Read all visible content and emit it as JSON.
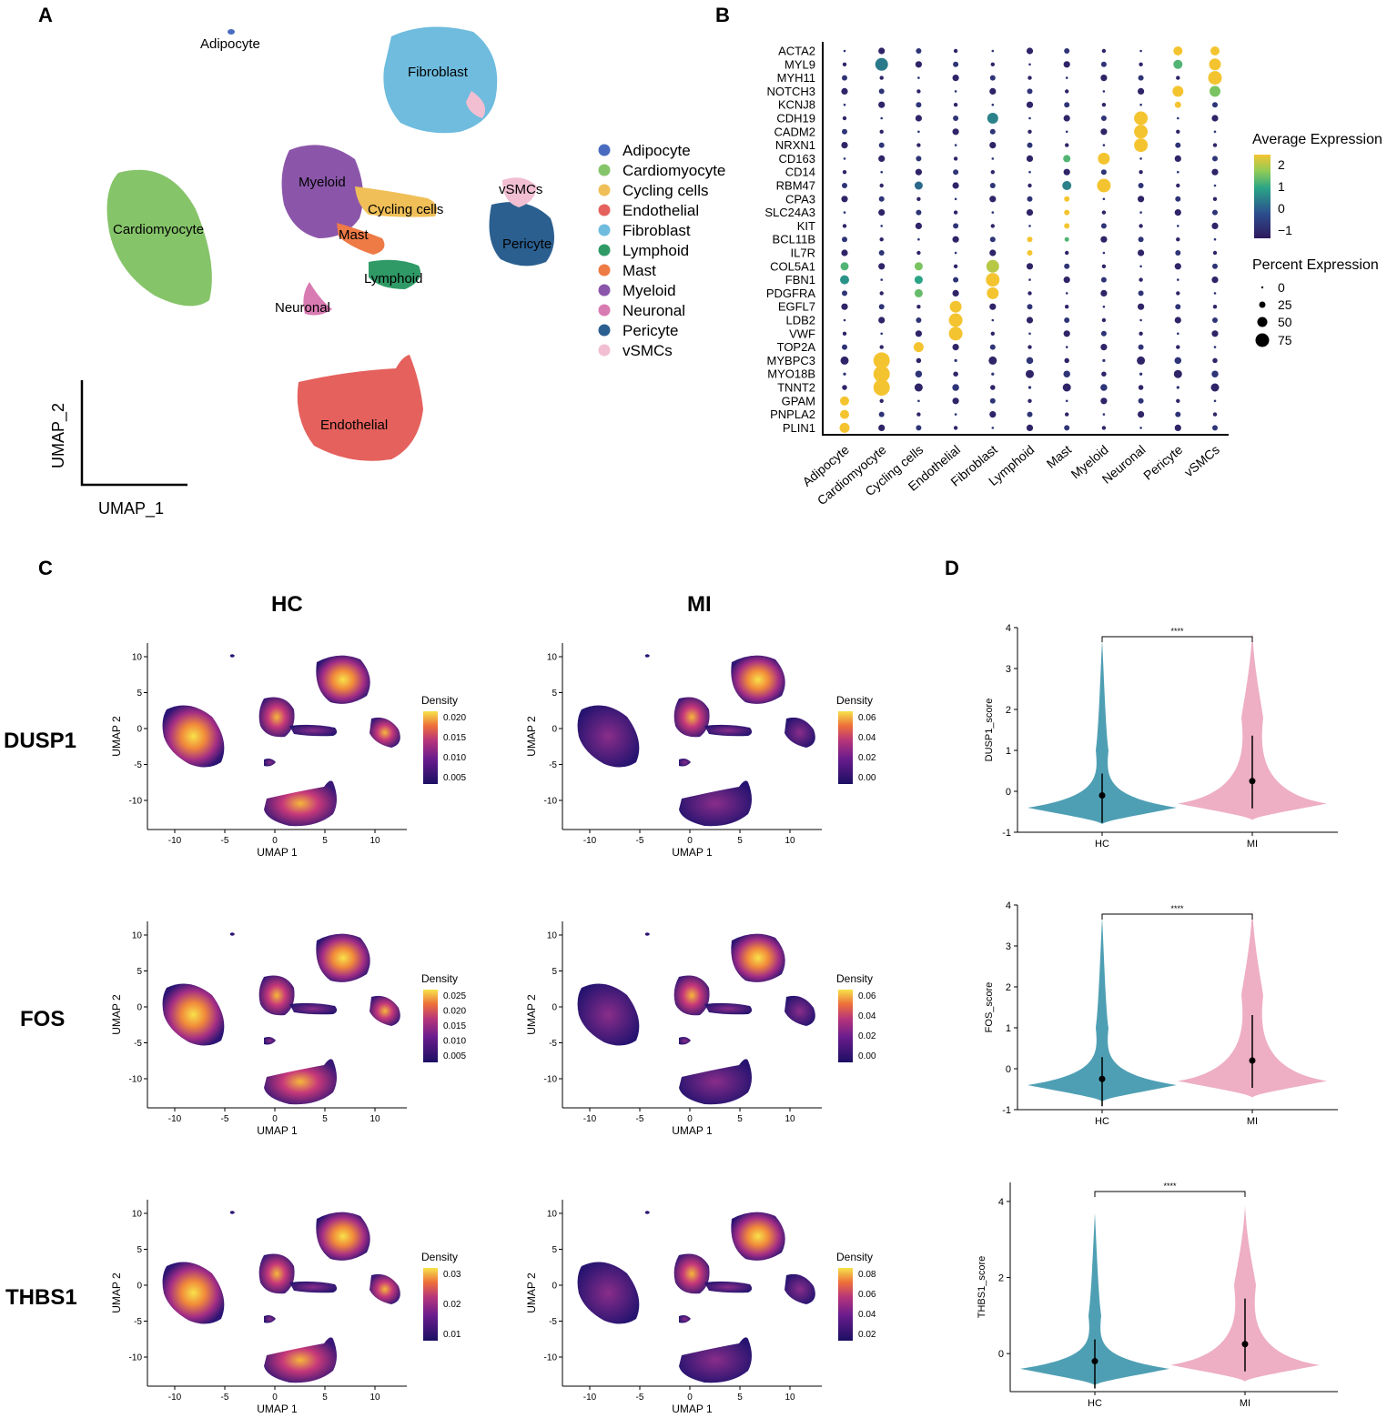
{
  "panels": {
    "A": "A",
    "B": "B",
    "C": "C",
    "D": "D"
  },
  "panel_a": {
    "cluster_labels": [
      "Adipocyte",
      "Fibroblast",
      "Myeloid",
      "Cardiomyocyte",
      "Cycling cells",
      "vSMCs",
      "Mast",
      "Pericyte",
      "Lymphoid",
      "Neuronal",
      "Endothelial"
    ],
    "legend": [
      {
        "name": "Adipocyte",
        "color": "#4a6cc0"
      },
      {
        "name": "Cardiomyocyte",
        "color": "#86c46a"
      },
      {
        "name": "Cycling cells",
        "color": "#f0bf57"
      },
      {
        "name": "Endothelial",
        "color": "#e5615d"
      },
      {
        "name": "Fibroblast",
        "color": "#6fbcde"
      },
      {
        "name": "Lymphoid",
        "color": "#2f9a66"
      },
      {
        "name": "Mast",
        "color": "#ee7a45"
      },
      {
        "name": "Myeloid",
        "color": "#8b56aa"
      },
      {
        "name": "Neuronal",
        "color": "#d97bb3"
      },
      {
        "name": "Pericyte",
        "color": "#2b5f8f"
      },
      {
        "name": "vSMCs",
        "color": "#f2bfd2"
      }
    ],
    "axis_x": "UMAP_1",
    "axis_y": "UMAP_2"
  },
  "panel_b": {
    "genes": [
      "ACTA2",
      "MYL9",
      "MYH11",
      "NOTCH3",
      "KCNJ8",
      "CDH19",
      "CADM2",
      "NRXN1",
      "CD163",
      "CD14",
      "RBM47",
      "CPA3",
      "SLC24A3",
      "KIT",
      "BCL11B",
      "IL7R",
      "COL5A1",
      "FBN1",
      "PDGFRA",
      "EGFL7",
      "LDB2",
      "VWF",
      "TOP2A",
      "MYBPC3",
      "MYO18B",
      "TNNT2",
      "GPAM",
      "PNPLA2",
      "PLIN1"
    ],
    "cell_types": [
      "Adipocyte",
      "Cardiomyocyte",
      "Cycling cells",
      "Endothelial",
      "Fibroblast",
      "Lymphoid",
      "Mast",
      "Myeloid",
      "Neuronal",
      "Pericyte",
      "vSMCs"
    ],
    "avg_title": "Average Expression",
    "avg_ticks": [
      "2",
      "1",
      "0",
      "−1"
    ],
    "pct_title": "Percent Expression",
    "pct_ticks": [
      "0",
      "25",
      "50",
      "75"
    ]
  },
  "panel_c": {
    "conditions": [
      "HC",
      "MI"
    ],
    "genes": [
      "DUSP1",
      "FOS",
      "THBS1"
    ],
    "x_label": "UMAP 1",
    "y_label": "UMAP 2",
    "x_ticks": [
      "-10",
      "-5",
      "0",
      "5",
      "10"
    ],
    "y_ticks": [
      "10",
      "5",
      "0",
      "-5",
      "-10"
    ],
    "density_title": "Density",
    "density_ticks": [
      [
        [
          "0.020",
          "0.015",
          "0.010",
          "0.005"
        ],
        [
          "0.06",
          "0.04",
          "0.02",
          "0.00"
        ]
      ],
      [
        [
          "0.025",
          "0.020",
          "0.015",
          "0.010",
          "0.005"
        ],
        [
          "0.06",
          "0.04",
          "0.02",
          "0.00"
        ]
      ],
      [
        [
          "0.03",
          "0.02",
          "0.01"
        ],
        [
          "0.08",
          "0.06",
          "0.04",
          "0.02"
        ]
      ]
    ]
  },
  "chart_data": [
    {
      "type": "violin",
      "title": "",
      "ylabel": "DUSP1_score",
      "categories": [
        "HC",
        "MI"
      ],
      "yticks": [
        "4",
        "3",
        "2",
        "1",
        "0",
        "-1"
      ],
      "ylim": [
        -1,
        4
      ],
      "medians": [
        -0.1,
        0.25
      ],
      "significance": "****",
      "colors": [
        "#4f9fb4",
        "#eeaec4"
      ]
    },
    {
      "type": "violin",
      "title": "",
      "ylabel": "FOS_score",
      "categories": [
        "HC",
        "MI"
      ],
      "yticks": [
        "4",
        "3",
        "2",
        "1",
        "0",
        "-1"
      ],
      "ylim": [
        -1,
        4
      ],
      "medians": [
        -0.25,
        0.2
      ],
      "significance": "****",
      "colors": [
        "#4f9fb4",
        "#eeaec4"
      ]
    },
    {
      "type": "violin",
      "title": "",
      "ylabel": "THBS1_score",
      "categories": [
        "HC",
        "MI"
      ],
      "yticks": [
        "4",
        "2",
        "0"
      ],
      "ylim": [
        -1,
        4.5
      ],
      "medians": [
        -0.2,
        0.25
      ],
      "significance": "****",
      "colors": [
        "#4f9fb4",
        "#eeaec4"
      ]
    }
  ]
}
